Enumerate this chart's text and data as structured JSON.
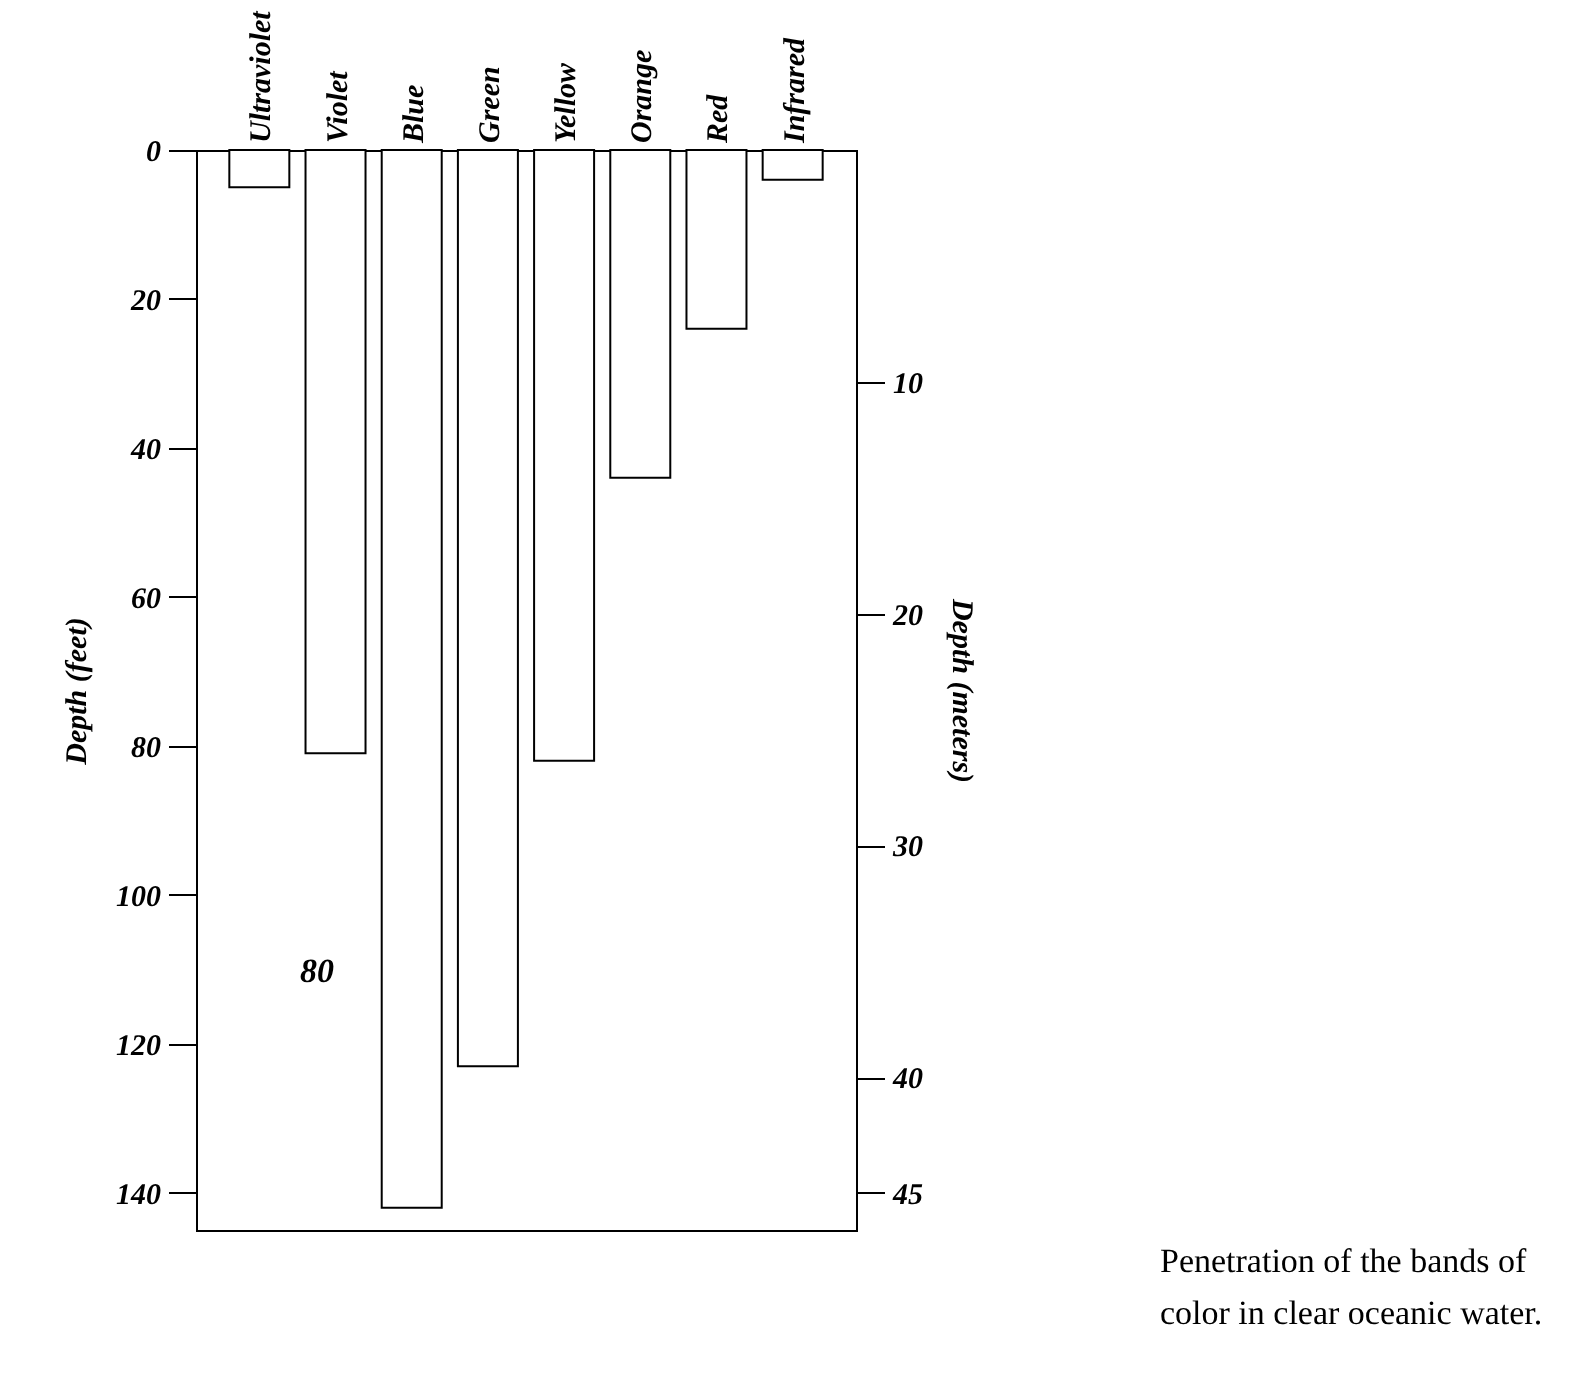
{
  "chart_data": {
    "type": "bar",
    "categories": [
      "Ultraviolet",
      "Violet",
      "Blue",
      "Green",
      "Yellow",
      "Orange",
      "Red",
      "Infrared"
    ],
    "values": [
      5,
      81,
      142,
      123,
      82,
      44,
      24,
      4
    ],
    "color": "#ffffff",
    "ylabel": "Depth (feet)",
    "y2label": "Depth (meters)",
    "ylim": [
      145,
      0
    ],
    "yticks": [
      0,
      20,
      40,
      60,
      80,
      100,
      120,
      140
    ],
    "y2lim": [
      46.6,
      0
    ],
    "y2ticks": [
      10,
      20,
      30,
      40,
      45
    ],
    "annotations": [
      "80",
      "Penetration of the bands of color in clear oceanic water."
    ]
  }
}
